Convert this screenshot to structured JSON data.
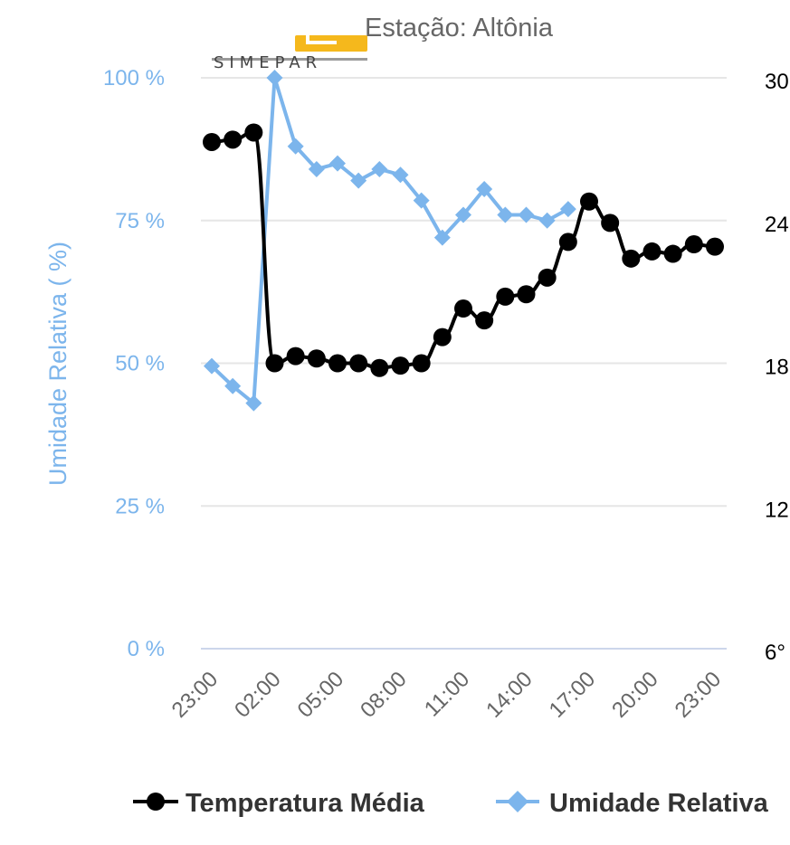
{
  "chart_data": {
    "type": "line",
    "title": "Estação: Altônia",
    "logo": {
      "text": "SIMEPAR",
      "accent_color": "#f5b81c"
    },
    "x": [
      "23:00",
      "00:00",
      "01:00",
      "02:00",
      "03:00",
      "04:00",
      "05:00",
      "06:00",
      "07:00",
      "08:00",
      "09:00",
      "10:00",
      "11:00",
      "12:00",
      "13:00",
      "14:00",
      "15:00",
      "16:00",
      "17:00",
      "18:00",
      "19:00",
      "20:00",
      "21:00",
      "22:00",
      "23:00"
    ],
    "x_tick_labels": [
      "23:00",
      "02:00",
      "05:00",
      "08:00",
      "11:00",
      "14:00",
      "17:00",
      "20:00",
      "23:00"
    ],
    "y_left": {
      "label": "Umidade Relativa ( %)",
      "tick_labels": [
        "0 %",
        "25 %",
        "50 %",
        "75 %",
        "100 %"
      ],
      "ticks": [
        0,
        25,
        50,
        75,
        100
      ],
      "range": [
        0,
        100
      ]
    },
    "y_right": {
      "tick_labels": [
        "6°",
        "12",
        "18",
        "24",
        "30"
      ],
      "ticks": [
        6,
        12,
        18,
        24,
        30
      ],
      "range": [
        6,
        30
      ]
    },
    "grid": true,
    "series": [
      {
        "name": "Temperatura Média",
        "axis": "right",
        "color": "#000000",
        "marker": "circle",
        "values": [
          27.3,
          27.4,
          27.7,
          18.0,
          18.3,
          18.2,
          18.0,
          18.0,
          17.8,
          17.9,
          18.0,
          19.1,
          20.3,
          19.8,
          20.8,
          20.9,
          21.6,
          23.1,
          24.8,
          23.9,
          22.4,
          22.7,
          22.6,
          23.0,
          22.9
        ]
      },
      {
        "name": "Umidade Relativa",
        "axis": "left",
        "color": "#7cb5ec",
        "marker": "diamond",
        "values": [
          49.5,
          46,
          43,
          100,
          88,
          84,
          85,
          82,
          84,
          83,
          78.5,
          72,
          76,
          80.5,
          76,
          76,
          75,
          77,
          null,
          null,
          null,
          null,
          null,
          null,
          null
        ]
      }
    ],
    "legend": {
      "position": "bottom",
      "items": [
        "Temperatura Média",
        "Umidade Relativa"
      ]
    }
  }
}
